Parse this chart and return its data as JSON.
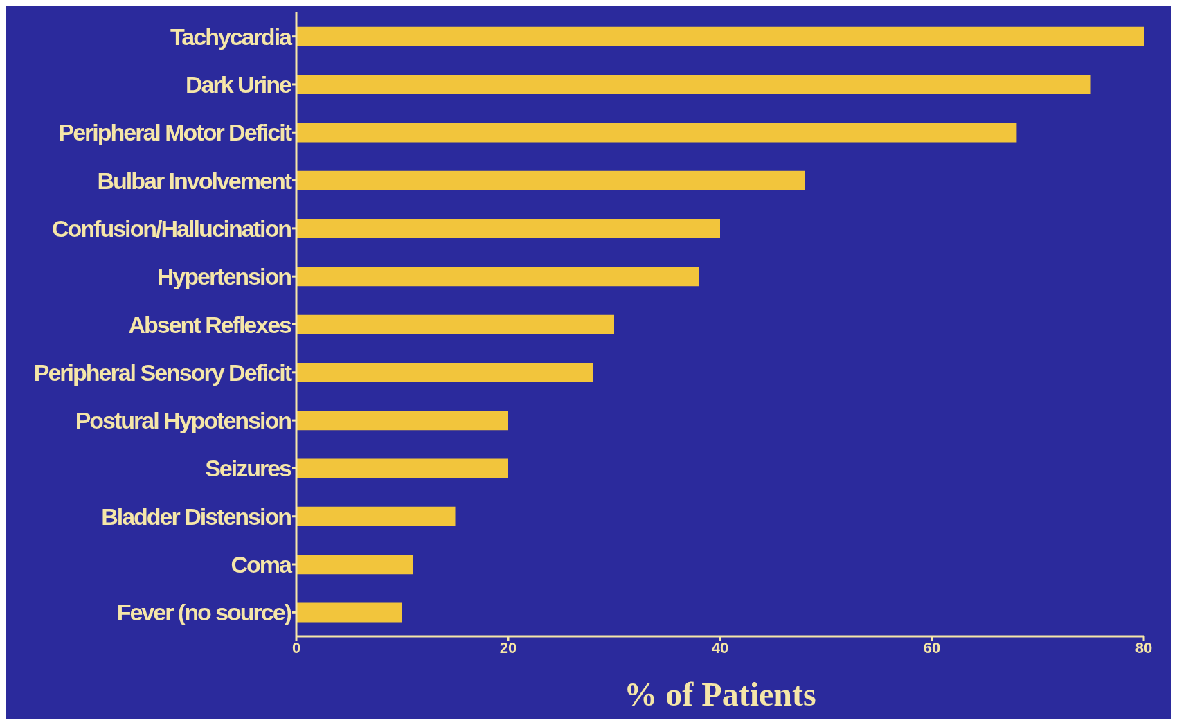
{
  "chart_data": {
    "type": "bar",
    "orientation": "horizontal",
    "xlabel": "% of Patients",
    "categories": [
      "Tachycardia",
      "Dark Urine",
      "Peripheral Motor Deficit",
      "Bulbar Involvement",
      "Confusion/Hallucination",
      "Hypertension",
      "Absent Reflexes",
      "Peripheral Sensory Deficit",
      "Postural Hypotension",
      "Seizures",
      "Bladder Distension",
      "Coma",
      "Fever (no source)"
    ],
    "values": [
      80,
      75,
      68,
      48,
      40,
      38,
      30,
      28,
      20,
      20,
      15,
      11,
      10
    ],
    "color": "#f2c53c",
    "xlim": [
      0,
      80
    ],
    "xticks": [
      0,
      20,
      40,
      60,
      80
    ],
    "grid": false,
    "legend": false
  }
}
